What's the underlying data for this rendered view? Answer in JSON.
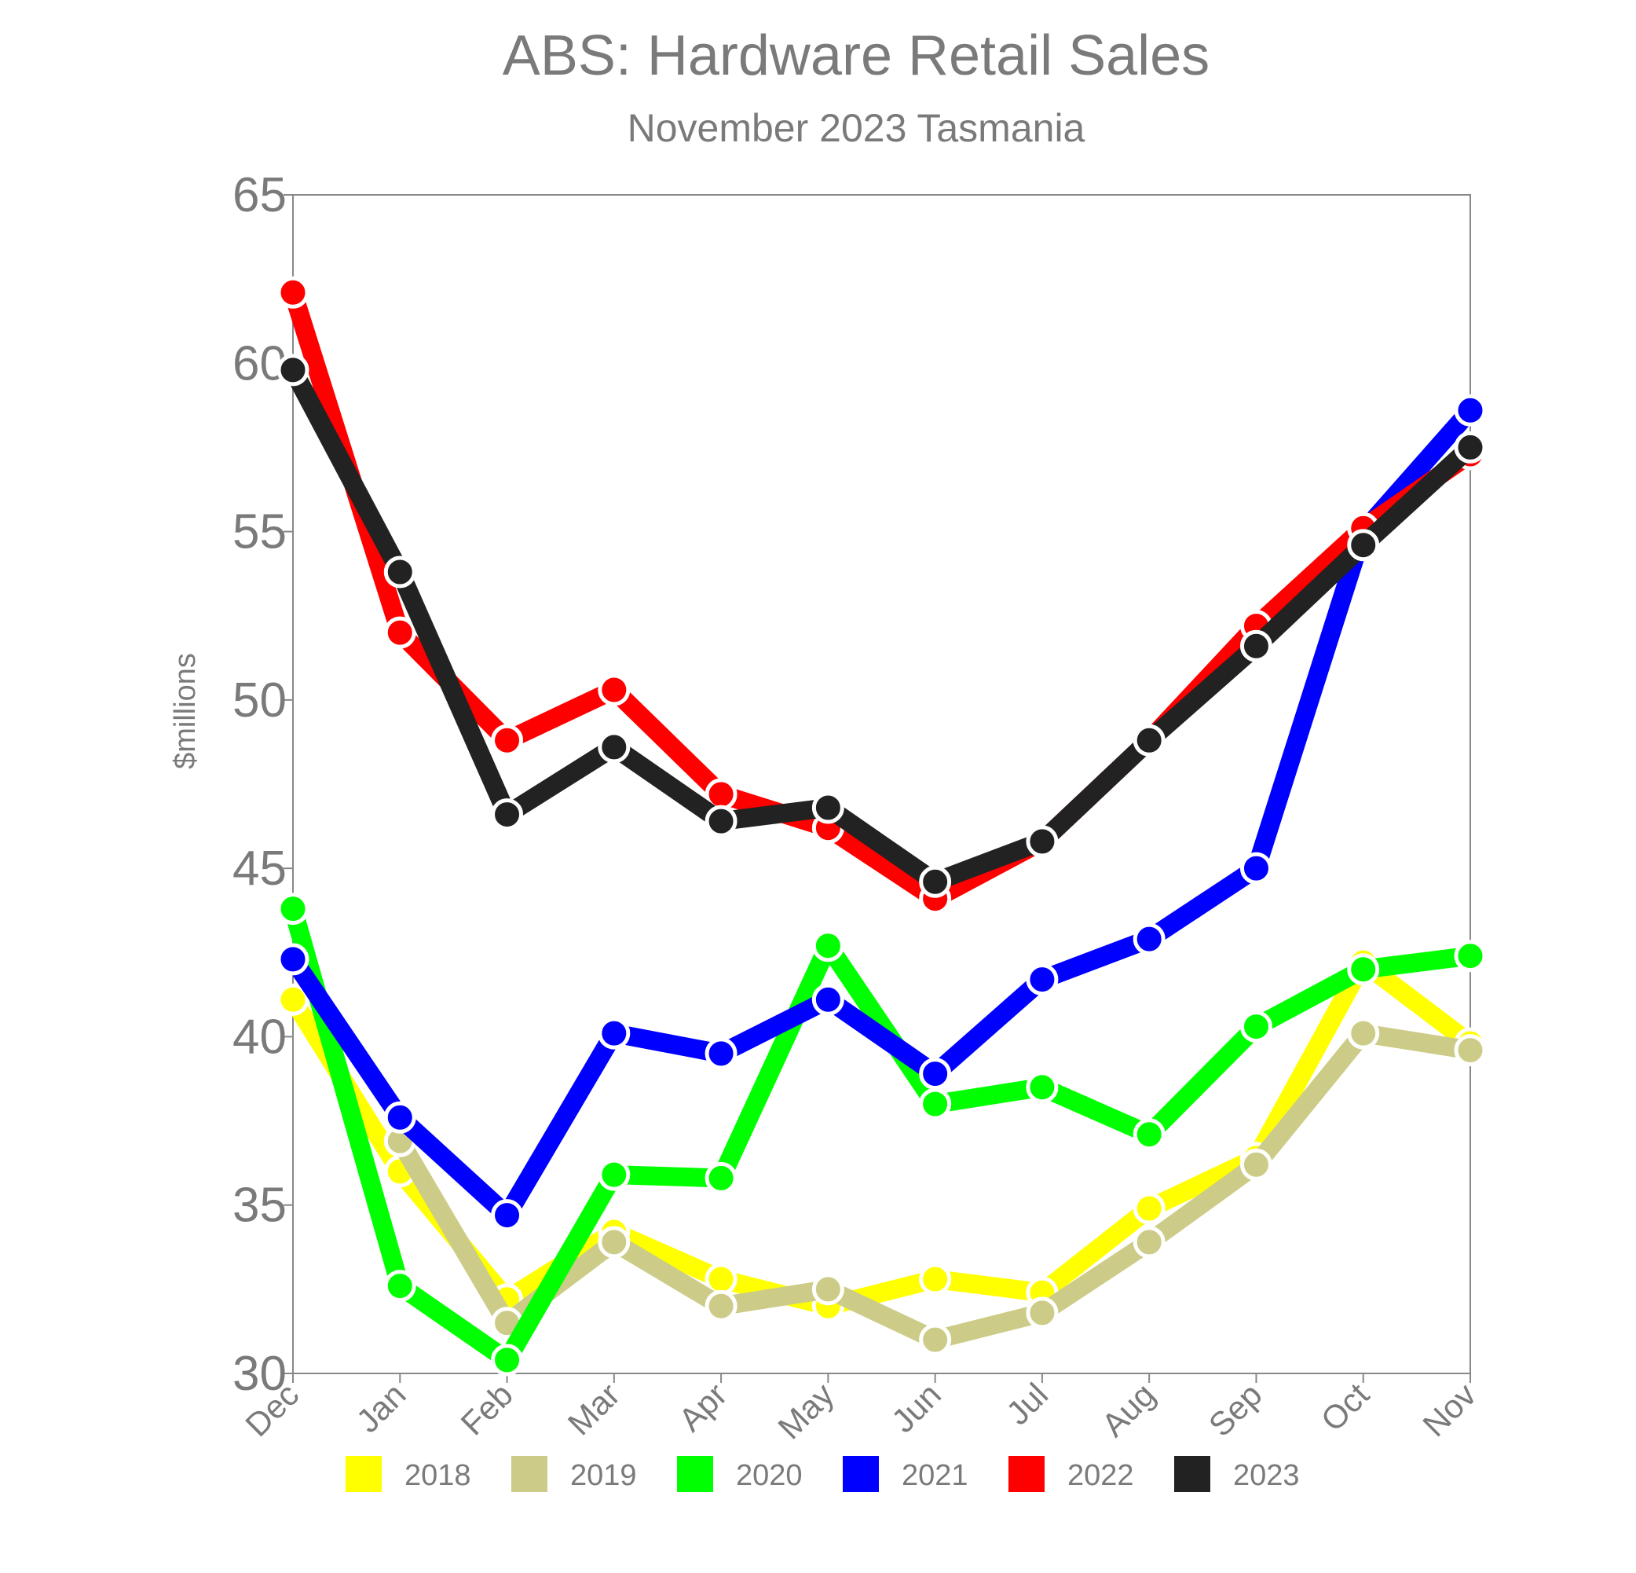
{
  "chart_data": {
    "type": "line",
    "title": "ABS: Hardware Retail Sales",
    "subtitle": "November 2023 Tasmania",
    "xlabel": "",
    "ylabel": "$millions",
    "categories": [
      "Dec",
      "Jan",
      "Feb",
      "Mar",
      "Apr",
      "May",
      "Jun",
      "Jul",
      "Aug",
      "Sep",
      "Oct",
      "Nov"
    ],
    "ylim": [
      30,
      65
    ],
    "yticks": [
      30,
      35,
      40,
      45,
      50,
      55,
      60,
      65
    ],
    "grid": false,
    "legend_position": "bottom",
    "series": [
      {
        "name": "2018",
        "color": "#ffff00",
        "values": [
          41.1,
          36.0,
          32.2,
          34.2,
          32.8,
          32.0,
          32.8,
          32.4,
          34.9,
          36.4,
          42.2,
          39.8
        ]
      },
      {
        "name": "2019",
        "color": "#cccc88",
        "values": [
          null,
          36.9,
          31.5,
          33.9,
          32.0,
          32.5,
          31.0,
          31.8,
          33.9,
          36.2,
          40.1,
          39.6
        ]
      },
      {
        "name": "2020",
        "color": "#00ff00",
        "values": [
          43.8,
          32.6,
          30.4,
          35.9,
          35.8,
          42.7,
          38.0,
          38.5,
          37.1,
          40.3,
          42.0,
          42.4
        ]
      },
      {
        "name": "2021",
        "color": "#0000ff",
        "values": [
          42.3,
          37.6,
          34.7,
          40.1,
          39.5,
          41.1,
          38.9,
          41.7,
          42.9,
          45.0,
          55.0,
          58.6
        ]
      },
      {
        "name": "2022",
        "color": "#ff0000",
        "values": [
          62.1,
          52.0,
          48.8,
          50.3,
          47.2,
          46.2,
          44.1,
          45.8,
          48.8,
          52.2,
          55.1,
          57.3
        ]
      },
      {
        "name": "2023",
        "color": "#222222",
        "values": [
          59.8,
          53.8,
          46.6,
          48.6,
          46.4,
          46.8,
          44.6,
          45.8,
          48.8,
          51.6,
          54.6,
          57.5
        ]
      }
    ]
  }
}
